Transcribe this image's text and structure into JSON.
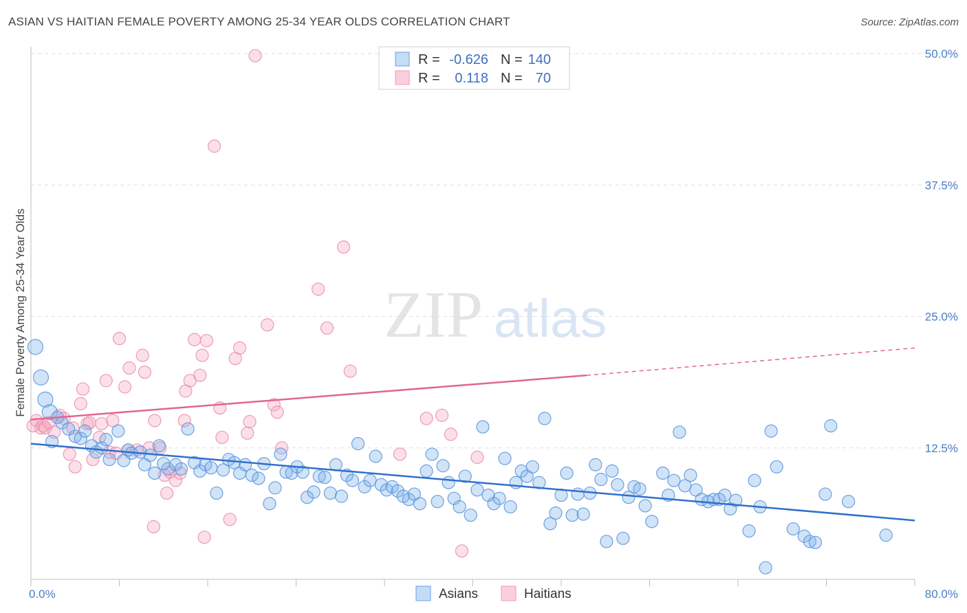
{
  "title": "ASIAN VS HAITIAN FEMALE POVERTY AMONG 25-34 YEAR OLDS CORRELATION CHART",
  "source": "Source: ZipAtlas.com",
  "watermark": {
    "zip": "ZIP",
    "atlas": "atlas"
  },
  "chart_data": {
    "type": "scatter",
    "xlabel": "",
    "ylabel": "Female Poverty Among 25-34 Year Olds",
    "xlim": [
      0,
      80
    ],
    "ylim": [
      0,
      50
    ],
    "x_tick_labels": [
      "0.0%",
      "80.0%"
    ],
    "y_ticks": [
      12.5,
      25.0,
      37.5,
      50.0
    ],
    "y_tick_labels": [
      "12.5%",
      "25.0%",
      "37.5%",
      "50.0%"
    ],
    "grid": "horizontal dashed",
    "legend_position": "top-center",
    "stats": [
      {
        "name": "Asians",
        "r_label": "R =",
        "r": "-0.626",
        "n_label": "N =",
        "n": "140"
      },
      {
        "name": "Haitians",
        "r_label": "R =",
        "r": "0.118",
        "n_label": "N =",
        "n": "70"
      }
    ],
    "series": [
      {
        "name": "Asians",
        "color": "#7aaee8",
        "line_color": "#2f6fcc",
        "trend": {
          "x": [
            0,
            80
          ],
          "y": [
            12.9,
            5.6
          ]
        },
        "points": [
          [
            0.4,
            22.1
          ],
          [
            0.9,
            19.2
          ],
          [
            1.3,
            17.1
          ],
          [
            1.7,
            15.9
          ],
          [
            2.4,
            15.4
          ],
          [
            2.8,
            14.9
          ],
          [
            3.4,
            14.3
          ],
          [
            4.0,
            13.6
          ],
          [
            4.5,
            13.4
          ],
          [
            4.9,
            14.1
          ],
          [
            5.5,
            12.7
          ],
          [
            5.9,
            12.1
          ],
          [
            6.4,
            12.5
          ],
          [
            6.8,
            13.3
          ],
          [
            7.1,
            11.4
          ],
          [
            7.9,
            14.1
          ],
          [
            8.4,
            11.3
          ],
          [
            8.8,
            12.3
          ],
          [
            9.1,
            12.0
          ],
          [
            9.9,
            12.1
          ],
          [
            10.3,
            10.9
          ],
          [
            10.8,
            11.8
          ],
          [
            11.2,
            10.1
          ],
          [
            11.6,
            12.7
          ],
          [
            12.0,
            11.0
          ],
          [
            12.4,
            10.5
          ],
          [
            13.1,
            10.9
          ],
          [
            13.6,
            10.5
          ],
          [
            14.2,
            14.3
          ],
          [
            14.8,
            11.1
          ],
          [
            15.3,
            10.3
          ],
          [
            15.8,
            10.9
          ],
          [
            16.3,
            10.6
          ],
          [
            16.8,
            8.2
          ],
          [
            17.4,
            10.4
          ],
          [
            17.9,
            11.4
          ],
          [
            18.4,
            11.1
          ],
          [
            18.9,
            10.1
          ],
          [
            19.4,
            10.9
          ],
          [
            20.0,
            9.9
          ],
          [
            20.6,
            9.6
          ],
          [
            21.1,
            11.0
          ],
          [
            21.6,
            7.2
          ],
          [
            22.1,
            8.7
          ],
          [
            22.6,
            11.9
          ],
          [
            23.1,
            10.2
          ],
          [
            23.6,
            10.1
          ],
          [
            24.1,
            10.7
          ],
          [
            24.6,
            10.2
          ],
          [
            25.0,
            7.8
          ],
          [
            25.6,
            8.3
          ],
          [
            26.1,
            9.8
          ],
          [
            26.6,
            9.7
          ],
          [
            27.1,
            8.2
          ],
          [
            27.6,
            10.9
          ],
          [
            28.1,
            7.9
          ],
          [
            28.6,
            9.9
          ],
          [
            29.1,
            9.4
          ],
          [
            29.6,
            12.9
          ],
          [
            30.2,
            8.8
          ],
          [
            30.7,
            9.4
          ],
          [
            31.2,
            11.7
          ],
          [
            31.7,
            9.0
          ],
          [
            32.2,
            8.5
          ],
          [
            32.7,
            8.8
          ],
          [
            33.2,
            8.4
          ],
          [
            33.7,
            7.9
          ],
          [
            34.2,
            7.6
          ],
          [
            34.7,
            8.1
          ],
          [
            35.2,
            7.2
          ],
          [
            35.8,
            10.3
          ],
          [
            36.3,
            11.9
          ],
          [
            36.8,
            7.4
          ],
          [
            37.3,
            10.8
          ],
          [
            37.8,
            9.2
          ],
          [
            38.3,
            7.7
          ],
          [
            38.8,
            6.9
          ],
          [
            39.3,
            9.8
          ],
          [
            39.8,
            6.1
          ],
          [
            40.4,
            8.5
          ],
          [
            40.9,
            14.5
          ],
          [
            41.4,
            8.0
          ],
          [
            41.9,
            7.2
          ],
          [
            42.4,
            7.7
          ],
          [
            42.9,
            11.5
          ],
          [
            43.4,
            6.9
          ],
          [
            43.9,
            9.2
          ],
          [
            44.4,
            10.3
          ],
          [
            44.9,
            9.8
          ],
          [
            45.4,
            10.7
          ],
          [
            46.0,
            9.2
          ],
          [
            46.5,
            15.3
          ],
          [
            47.0,
            5.3
          ],
          [
            47.5,
            6.3
          ],
          [
            48.0,
            8.0
          ],
          [
            48.5,
            10.1
          ],
          [
            49.0,
            6.1
          ],
          [
            49.5,
            8.1
          ],
          [
            50.0,
            6.2
          ],
          [
            50.6,
            8.2
          ],
          [
            51.1,
            10.9
          ],
          [
            51.6,
            9.5
          ],
          [
            52.1,
            3.6
          ],
          [
            52.6,
            10.3
          ],
          [
            53.1,
            9.0
          ],
          [
            53.6,
            3.9
          ],
          [
            54.1,
            7.8
          ],
          [
            54.6,
            8.8
          ],
          [
            55.1,
            8.6
          ],
          [
            55.6,
            7.0
          ],
          [
            56.2,
            5.5
          ],
          [
            57.2,
            10.1
          ],
          [
            57.7,
            8.0
          ],
          [
            58.2,
            9.4
          ],
          [
            58.7,
            14.0
          ],
          [
            59.2,
            8.9
          ],
          [
            59.7,
            9.9
          ],
          [
            60.2,
            8.5
          ],
          [
            60.7,
            7.6
          ],
          [
            61.3,
            7.4
          ],
          [
            61.8,
            7.6
          ],
          [
            62.3,
            7.6
          ],
          [
            62.8,
            8.0
          ],
          [
            63.3,
            6.7
          ],
          [
            63.8,
            7.5
          ],
          [
            65.0,
            4.6
          ],
          [
            65.5,
            9.4
          ],
          [
            66.0,
            6.9
          ],
          [
            67.0,
            14.1
          ],
          [
            66.5,
            1.1
          ],
          [
            67.5,
            10.7
          ],
          [
            69.0,
            4.8
          ],
          [
            70.0,
            4.1
          ],
          [
            70.5,
            3.6
          ],
          [
            71.0,
            3.5
          ],
          [
            71.9,
            8.1
          ],
          [
            72.4,
            14.6
          ],
          [
            74.0,
            7.4
          ],
          [
            77.4,
            4.2
          ],
          [
            1.9,
            13.1
          ]
        ],
        "point_sizes": {
          "large": [
            0,
            1,
            2,
            3
          ]
        }
      },
      {
        "name": "Haitians",
        "color": "#f4a6bd",
        "line_color": "#e0668e",
        "trend": {
          "x": [
            0,
            50.3
          ],
          "y": [
            15.2,
            19.4
          ]
        },
        "trend_dashed": {
          "x": [
            50.3,
            80
          ],
          "y": [
            19.4,
            22.0
          ]
        },
        "points": [
          [
            0.2,
            14.6
          ],
          [
            0.5,
            15.1
          ],
          [
            0.9,
            14.4
          ],
          [
            1.1,
            14.6
          ],
          [
            1.3,
            14.4
          ],
          [
            1.6,
            14.9
          ],
          [
            2.1,
            14.0
          ],
          [
            2.6,
            15.6
          ],
          [
            3.0,
            15.3
          ],
          [
            3.5,
            11.9
          ],
          [
            3.8,
            14.4
          ],
          [
            4.0,
            10.7
          ],
          [
            4.5,
            16.7
          ],
          [
            4.7,
            18.1
          ],
          [
            5.1,
            14.8
          ],
          [
            5.3,
            14.9
          ],
          [
            5.6,
            11.4
          ],
          [
            6.2,
            13.5
          ],
          [
            6.4,
            14.8
          ],
          [
            6.8,
            18.9
          ],
          [
            7.1,
            12.1
          ],
          [
            7.4,
            15.1
          ],
          [
            7.7,
            12.0
          ],
          [
            8.0,
            22.9
          ],
          [
            8.5,
            18.3
          ],
          [
            8.8,
            12.3
          ],
          [
            8.9,
            20.1
          ],
          [
            9.6,
            12.3
          ],
          [
            10.1,
            21.3
          ],
          [
            10.3,
            19.7
          ],
          [
            10.7,
            12.5
          ],
          [
            11.1,
            5.0
          ],
          [
            11.2,
            15.1
          ],
          [
            11.7,
            12.5
          ],
          [
            12.1,
            9.9
          ],
          [
            12.3,
            8.2
          ],
          [
            12.6,
            10.2
          ],
          [
            13.1,
            9.4
          ],
          [
            13.5,
            10.1
          ],
          [
            13.9,
            15.1
          ],
          [
            14.0,
            17.9
          ],
          [
            14.4,
            18.9
          ],
          [
            14.8,
            22.8
          ],
          [
            15.3,
            19.4
          ],
          [
            15.5,
            21.3
          ],
          [
            15.7,
            4.0
          ],
          [
            15.9,
            22.7
          ],
          [
            16.6,
            41.2
          ],
          [
            17.1,
            16.3
          ],
          [
            17.3,
            13.5
          ],
          [
            18.0,
            5.7
          ],
          [
            18.5,
            21.0
          ],
          [
            18.9,
            22.0
          ],
          [
            19.6,
            13.9
          ],
          [
            19.8,
            15.0
          ],
          [
            20.3,
            49.8
          ],
          [
            21.4,
            24.2
          ],
          [
            22.0,
            16.6
          ],
          [
            22.3,
            15.9
          ],
          [
            22.7,
            12.5
          ],
          [
            26.0,
            27.6
          ],
          [
            26.8,
            23.9
          ],
          [
            28.3,
            31.6
          ],
          [
            28.9,
            19.8
          ],
          [
            33.4,
            11.9
          ],
          [
            35.8,
            15.3
          ],
          [
            37.2,
            15.6
          ],
          [
            38.0,
            13.8
          ],
          [
            39.0,
            2.7
          ],
          [
            40.4,
            11.6
          ]
        ]
      }
    ]
  }
}
